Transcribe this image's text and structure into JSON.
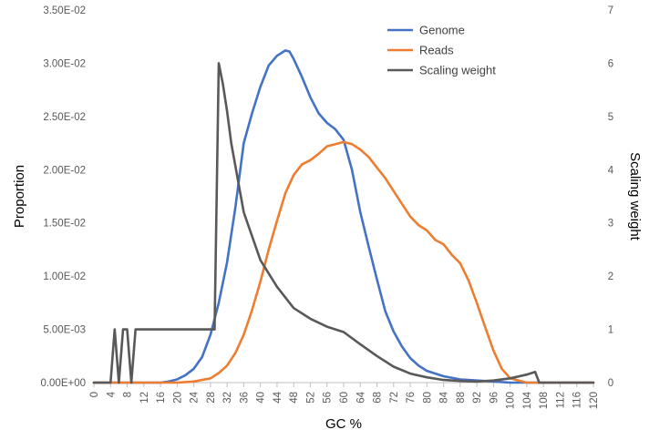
{
  "chart_data": {
    "type": "line",
    "xlabel": "GC %",
    "ylabel_left": "Proportion",
    "ylabel_right": "Scaling weight",
    "x_ticks": [
      "0",
      "4",
      "8",
      "12",
      "16",
      "20",
      "24",
      "28",
      "32",
      "36",
      "40",
      "44",
      "48",
      "52",
      "56",
      "60",
      "64",
      "68",
      "72",
      "76",
      "80",
      "84",
      "88",
      "92",
      "96",
      "100",
      "104",
      "108",
      "112",
      "116",
      "120"
    ],
    "y_left_ticks": [
      "0.00E+00",
      "5.00E-03",
      "1.00E-02",
      "1.50E-02",
      "2.00E-02",
      "2.50E-02",
      "3.00E-02",
      "3.50E-02"
    ],
    "y_right_ticks": [
      "0",
      "1",
      "2",
      "3",
      "4",
      "5",
      "6",
      "7"
    ],
    "xlim": [
      0,
      120
    ],
    "ylim_left": [
      0,
      0.035
    ],
    "ylim_right": [
      0,
      7
    ],
    "grid": false,
    "legend_position": "top-right",
    "series": [
      {
        "name": "Genome",
        "axis": "left",
        "color": "#4472C4",
        "x": [
          0,
          10,
          16,
          18,
          20,
          22,
          24,
          26,
          28,
          30,
          32,
          34,
          36,
          38,
          40,
          42,
          44,
          46,
          47,
          48,
          50,
          52,
          54,
          56,
          58,
          60,
          62,
          64,
          66,
          68,
          70,
          72,
          74,
          76,
          78,
          80,
          84,
          88,
          92,
          96,
          100,
          104,
          120
        ],
        "y": [
          0,
          0,
          0,
          0.0001,
          0.0003,
          0.0007,
          0.0013,
          0.0024,
          0.0045,
          0.0075,
          0.0113,
          0.0165,
          0.0225,
          0.0253,
          0.0278,
          0.0298,
          0.0307,
          0.0312,
          0.0311,
          0.0304,
          0.0287,
          0.0268,
          0.0253,
          0.0244,
          0.0238,
          0.0228,
          0.02,
          0.016,
          0.0128,
          0.0097,
          0.0067,
          0.0048,
          0.0034,
          0.0023,
          0.0016,
          0.0011,
          0.0006,
          0.0003,
          0.0002,
          0.0001,
          0,
          0,
          0
        ]
      },
      {
        "name": "Reads",
        "axis": "left",
        "color": "#ED7D31",
        "x": [
          0,
          20,
          24,
          28,
          30,
          32,
          34,
          36,
          38,
          40,
          42,
          44,
          46,
          48,
          50,
          52,
          54,
          56,
          58,
          60,
          62,
          64,
          66,
          68,
          70,
          72,
          74,
          76,
          78,
          80,
          82,
          84,
          86,
          88,
          90,
          92,
          94,
          96,
          98,
          100,
          104,
          120
        ],
        "y": [
          0,
          0,
          0.0001,
          0.0004,
          0.0009,
          0.0016,
          0.0028,
          0.0045,
          0.0068,
          0.0095,
          0.0125,
          0.0152,
          0.0178,
          0.0195,
          0.0205,
          0.0209,
          0.0215,
          0.0222,
          0.0224,
          0.0226,
          0.0224,
          0.0219,
          0.0212,
          0.0202,
          0.0192,
          0.018,
          0.0168,
          0.0156,
          0.0148,
          0.0143,
          0.0134,
          0.013,
          0.012,
          0.0112,
          0.0096,
          0.0075,
          0.0052,
          0.003,
          0.0013,
          0.0004,
          0,
          0
        ]
      },
      {
        "name": "Scaling weight",
        "axis": "right",
        "color": "#595959",
        "x": [
          0,
          4,
          5,
          6,
          7,
          8,
          9,
          10,
          11,
          12,
          20,
          24,
          28,
          29,
          30,
          31,
          32,
          33,
          36,
          40,
          44,
          48,
          52,
          56,
          60,
          64,
          68,
          72,
          76,
          80,
          84,
          88,
          92,
          96,
          100,
          104,
          106,
          107,
          120
        ],
        "y": [
          0,
          0,
          1,
          0,
          1,
          1,
          0,
          1,
          1,
          1,
          1,
          1,
          1,
          1,
          6,
          5.6,
          5.1,
          4.5,
          3.2,
          2.3,
          1.8,
          1.4,
          1.2,
          1.05,
          0.95,
          0.72,
          0.5,
          0.3,
          0.17,
          0.1,
          0.05,
          0.03,
          0.02,
          0.04,
          0.08,
          0.15,
          0.2,
          0,
          0
        ]
      }
    ]
  }
}
